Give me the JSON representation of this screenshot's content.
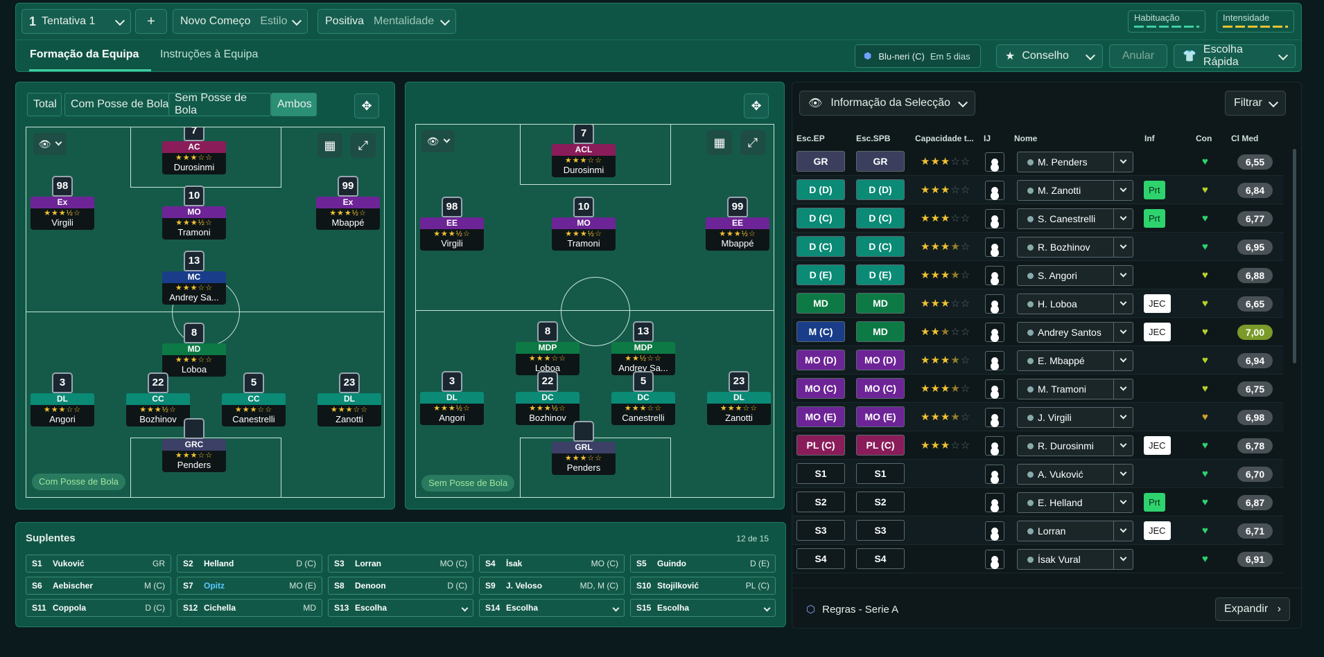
{
  "topbar": {
    "tactic_num": "1",
    "tactic_name": "Tentativa 1",
    "add": "+",
    "style": "Novo Começo",
    "style_label": "Estilo",
    "mentality": "Positiva",
    "mentality_label": "Mentalidade",
    "habit": "Habituação",
    "intensity": "Intensidade"
  },
  "tabs": {
    "formation": "Formação da Equipa",
    "instructions": "Instruções à Equipa"
  },
  "actions": {
    "next_match": "Blu-neri (C)",
    "next_when": "Em 5 dias",
    "advice": "Conselho",
    "undo": "Anular",
    "quick": "Escolha Rápida"
  },
  "left_panel": {
    "filters": [
      "Total",
      "Com Posse de Bola",
      "Sem Posse de Bola",
      "Ambos"
    ],
    "tag": "Com Posse de Bola"
  },
  "right_panel": {
    "tag": "Sem Posse de Bola"
  },
  "in_possession": [
    {
      "num": "7",
      "pos": "AC",
      "name": "Durosinmi",
      "cls": "p-st",
      "stars": "★★★☆☆"
    },
    {
      "num": "98",
      "pos": "Ex",
      "name": "Virgili",
      "cls": "p-att",
      "stars": "★★★½☆"
    },
    {
      "num": "10",
      "pos": "MO",
      "name": "Tramoni",
      "cls": "p-att",
      "stars": "★★★½☆"
    },
    {
      "num": "99",
      "pos": "Ex",
      "name": "Mbappé",
      "cls": "p-att",
      "stars": "★★★½☆"
    },
    {
      "num": "13",
      "pos": "MC",
      "name": "Andrey Sa...",
      "cls": "p-mc",
      "stars": "★★★☆☆"
    },
    {
      "num": "8",
      "pos": "MD",
      "name": "Loboa",
      "cls": "p-mid",
      "stars": "★★★☆☆"
    },
    {
      "num": "3",
      "pos": "DL",
      "name": "Angori",
      "cls": "p-def",
      "stars": "★★★☆☆"
    },
    {
      "num": "22",
      "pos": "CC",
      "name": "Bozhinov",
      "cls": "p-def",
      "stars": "★★★½☆"
    },
    {
      "num": "5",
      "pos": "CC",
      "name": "Canestrelli",
      "cls": "p-def",
      "stars": "★★★☆☆"
    },
    {
      "num": "23",
      "pos": "DL",
      "name": "Zanotti",
      "cls": "p-def",
      "stars": "★★★☆☆"
    },
    {
      "num": "",
      "pos": "GRC",
      "name": "Penders",
      "cls": "p-gk",
      "stars": "★★★☆☆"
    }
  ],
  "out_possession": [
    {
      "num": "7",
      "pos": "ACL",
      "name": "Durosinmi",
      "cls": "p-st",
      "stars": "★★★☆☆"
    },
    {
      "num": "98",
      "pos": "EE",
      "name": "Virgili",
      "cls": "p-att",
      "stars": "★★★½☆"
    },
    {
      "num": "10",
      "pos": "MO",
      "name": "Tramoni",
      "cls": "p-att",
      "stars": "★★★½☆"
    },
    {
      "num": "99",
      "pos": "EE",
      "name": "Mbappé",
      "cls": "p-att",
      "stars": "★★★½☆"
    },
    {
      "num": "8",
      "pos": "MDP",
      "name": "Loboa",
      "cls": "p-mid",
      "stars": "★★★☆☆"
    },
    {
      "num": "13",
      "pos": "MDP",
      "name": "Andrey Sa...",
      "cls": "p-mid",
      "stars": "★★½☆☆"
    },
    {
      "num": "3",
      "pos": "DL",
      "name": "Angori",
      "cls": "p-def",
      "stars": "★★★½☆"
    },
    {
      "num": "22",
      "pos": "DC",
      "name": "Bozhinov",
      "cls": "p-def",
      "stars": "★★★½☆"
    },
    {
      "num": "5",
      "pos": "DC",
      "name": "Canestrelli",
      "cls": "p-def",
      "stars": "★★★☆☆"
    },
    {
      "num": "23",
      "pos": "DL",
      "name": "Zanotti",
      "cls": "p-def",
      "stars": "★★★☆☆"
    },
    {
      "num": "",
      "pos": "GRL",
      "name": "Penders",
      "cls": "p-gk",
      "stars": "★★★☆☆"
    }
  ],
  "selection": {
    "title": "Informação da Selecção",
    "filter": "Filtrar",
    "headers": [
      "Esc.EP",
      "Esc.SPB",
      "Capacidade t...",
      "IJ",
      "Nome",
      "Inf",
      "Con",
      "Cl Med"
    ],
    "rows": [
      {
        "ep": "GR",
        "spb": "GR",
        "c1": "gk",
        "c2": "gk",
        "stars": 3,
        "name": "M. Penders",
        "inf": "",
        "ci": "6,55",
        "heart": "#2ed36e"
      },
      {
        "ep": "D (D)",
        "spb": "D (D)",
        "c1": "def",
        "c2": "def",
        "stars": 3,
        "name": "M. Zanotti",
        "inf": "Prt",
        "ci": "6,84",
        "heart": "#b8d12a"
      },
      {
        "ep": "D (C)",
        "spb": "D (C)",
        "c1": "def",
        "c2": "def",
        "stars": 3,
        "name": "S. Canestrelli",
        "inf": "Prt",
        "ci": "6,77",
        "heart": "#2ed36e"
      },
      {
        "ep": "D (C)",
        "spb": "D (C)",
        "c1": "def",
        "c2": "def",
        "stars": 3.5,
        "name": "R. Bozhinov",
        "inf": "",
        "ci": "6,95",
        "heart": "#2ed36e"
      },
      {
        "ep": "D (E)",
        "spb": "D (E)",
        "c1": "def",
        "c2": "def",
        "stars": 3.5,
        "name": "S. Angori",
        "inf": "",
        "ci": "6,88",
        "heart": "#b8d12a"
      },
      {
        "ep": "MD",
        "spb": "MD",
        "c1": "mid",
        "c2": "mid",
        "stars": 3,
        "name": "H. Loboa",
        "inf": "JEC",
        "ci": "6,65",
        "heart": "#b8d12a"
      },
      {
        "ep": "M (C)",
        "spb": "MD",
        "c1": "mc",
        "c2": "mid",
        "stars": 2.5,
        "name": "Andrey Santos",
        "inf": "JEC",
        "ci": "7,00",
        "heart": "#b8d12a",
        "hi": true
      },
      {
        "ep": "MO (D)",
        "spb": "MO (D)",
        "c1": "att",
        "c2": "att",
        "stars": 3.5,
        "name": "E. Mbappé",
        "inf": "",
        "ci": "6,94",
        "heart": "#b8d12a"
      },
      {
        "ep": "MO (C)",
        "spb": "MO (C)",
        "c1": "att",
        "c2": "att",
        "stars": 3.5,
        "name": "M. Tramoni",
        "inf": "",
        "ci": "6,75",
        "heart": "#b8d12a"
      },
      {
        "ep": "MO (E)",
        "spb": "MO (E)",
        "c1": "att",
        "c2": "att",
        "stars": 3.5,
        "name": "J. Virgili",
        "inf": "",
        "ci": "6,98",
        "heart": "#d1a02a"
      },
      {
        "ep": "PL (C)",
        "spb": "PL (C)",
        "c1": "st",
        "c2": "st",
        "stars": 3,
        "name": "R. Durosinmi",
        "inf": "JEC",
        "ci": "6,78",
        "heart": "#2ed36e"
      },
      {
        "ep": "S1",
        "spb": "S1",
        "c1": "sub",
        "c2": "sub",
        "stars": 0,
        "name": "A. Vuković",
        "inf": "",
        "ci": "6,70",
        "heart": "#2ed36e"
      },
      {
        "ep": "S2",
        "spb": "S2",
        "c1": "sub",
        "c2": "sub",
        "stars": 0,
        "name": "E. Helland",
        "inf": "Prt",
        "ci": "6,87",
        "heart": "#2ed36e"
      },
      {
        "ep": "S3",
        "spb": "S3",
        "c1": "sub",
        "c2": "sub",
        "stars": 0,
        "name": "Lorran",
        "inf": "JEC",
        "ci": "6,71",
        "heart": "#2ed36e"
      },
      {
        "ep": "S4",
        "spb": "S4",
        "c1": "sub",
        "c2": "sub",
        "stars": 0,
        "name": "İsak Vural",
        "inf": "",
        "ci": "6,91",
        "heart": "#2ed36e"
      }
    ],
    "rules": "Regras - Serie A",
    "expand": "Expandir"
  },
  "subs": {
    "title": "Suplentes",
    "count": "12 de 15",
    "items": [
      {
        "n": "S1",
        "name": "Vuković",
        "pos": "GR"
      },
      {
        "n": "S2",
        "name": "Helland",
        "pos": "D (C)"
      },
      {
        "n": "S3",
        "name": "Lorran",
        "pos": "MO (C)"
      },
      {
        "n": "S4",
        "name": "İsak",
        "pos": "MO (C)"
      },
      {
        "n": "S5",
        "name": "Guindo",
        "pos": "D (E)"
      },
      {
        "n": "S6",
        "name": "Aebischer",
        "pos": "M (C)"
      },
      {
        "n": "S7",
        "name": "Opitz",
        "pos": "MO (E)"
      },
      {
        "n": "S8",
        "name": "Denoon",
        "pos": "D (C)"
      },
      {
        "n": "S9",
        "name": "J. Veloso",
        "pos": "MD, M (C)"
      },
      {
        "n": "S10",
        "name": "Stojilković",
        "pos": "PL (C)"
      },
      {
        "n": "S11",
        "name": "Coppola",
        "pos": "D (C)"
      },
      {
        "n": "S12",
        "name": "Cichella",
        "pos": "MD"
      },
      {
        "n": "S13",
        "name": "Escolha",
        "pos": ""
      },
      {
        "n": "S14",
        "name": "Escolha",
        "pos": ""
      },
      {
        "n": "S15",
        "name": "Escolha",
        "pos": ""
      }
    ]
  }
}
